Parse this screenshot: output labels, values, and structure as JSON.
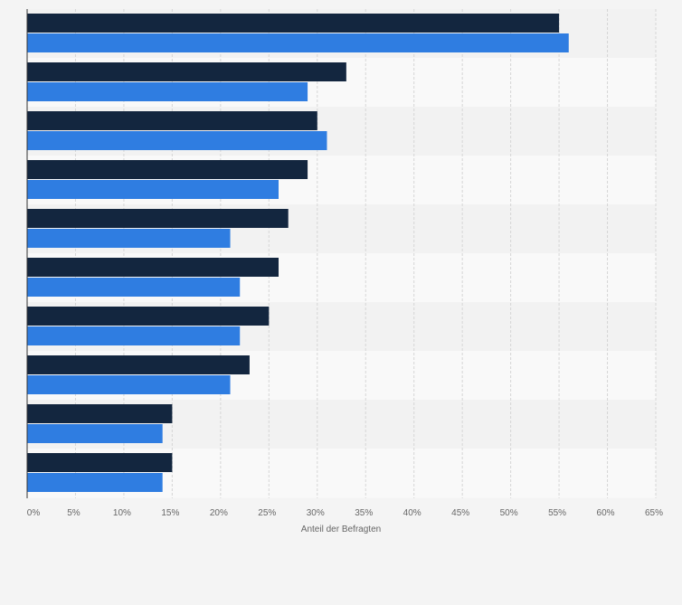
{
  "chart_data": {
    "type": "bar",
    "orientation": "horizontal",
    "xlabel": "Anteil der Befragten",
    "xlim": [
      0,
      65
    ],
    "xticks": [
      0,
      5,
      10,
      15,
      20,
      25,
      30,
      35,
      40,
      45,
      50,
      55,
      60,
      65
    ],
    "tick_labels": [
      "0%",
      "5%",
      "10%",
      "15%",
      "20%",
      "25%",
      "30%",
      "35%",
      "40%",
      "45%",
      "50%",
      "55%",
      "60%",
      "65%"
    ],
    "grid": true,
    "categories": [
      "",
      "",
      "",
      "",
      "",
      "",
      "",
      "",
      "",
      ""
    ],
    "series": [
      {
        "color": "#13263f",
        "values": [
          55,
          33,
          30,
          29,
          27,
          26,
          25,
          23,
          15,
          15
        ]
      },
      {
        "color": "#2f7de1",
        "values": [
          56,
          29,
          31,
          26,
          21,
          22,
          22,
          21,
          14,
          14
        ]
      }
    ]
  }
}
